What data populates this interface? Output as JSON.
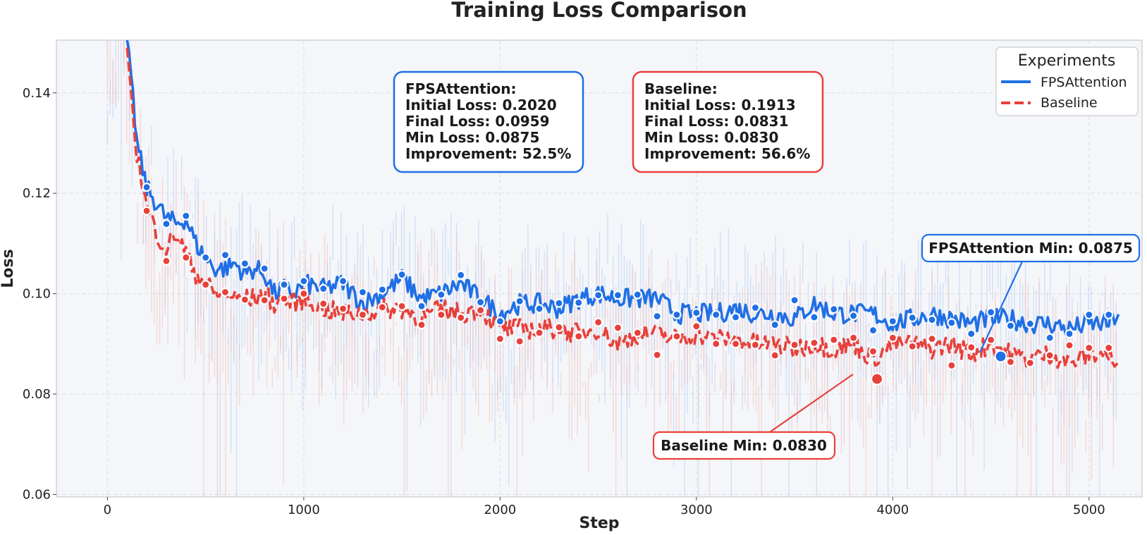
{
  "chart_data": {
    "type": "line",
    "title": "Training Loss Comparison",
    "xlabel": "Step",
    "ylabel": "Loss",
    "xlim": [
      -260,
      5270
    ],
    "ylim": [
      0.0595,
      0.1505
    ],
    "xticks": [
      0,
      1000,
      2000,
      3000,
      4000,
      5000
    ],
    "xtick_labels": [
      "0",
      "1000",
      "2000",
      "3000",
      "4000",
      "5000"
    ],
    "yticks": [
      0.06,
      0.08,
      0.1,
      0.12,
      0.14
    ],
    "ytick_labels": [
      "0.06",
      "0.08",
      "0.10",
      "0.12",
      "0.14"
    ],
    "grid": true,
    "legend": {
      "title": "Experiments",
      "location": "top-right",
      "entries": [
        "FPSAttention",
        "Baseline"
      ]
    },
    "series": [
      {
        "name": "FPSAttention",
        "color": "#1f6fe5",
        "style": "solid",
        "x": [
          100,
          150,
          200,
          250,
          300,
          350,
          400,
          450,
          500,
          550,
          600,
          650,
          700,
          750,
          800,
          850,
          900,
          950,
          1000,
          1100,
          1200,
          1300,
          1400,
          1500,
          1600,
          1700,
          1800,
          1900,
          2000,
          2100,
          2200,
          2300,
          2400,
          2500,
          2600,
          2700,
          2800,
          2900,
          3000,
          3100,
          3200,
          3300,
          3400,
          3500,
          3600,
          3700,
          3800,
          3900,
          4000,
          4100,
          4200,
          4300,
          4400,
          4500,
          4600,
          4700,
          4800,
          4900,
          5000,
          5100,
          5150
        ],
        "y": [
          0.153,
          0.13,
          0.121,
          0.118,
          0.115,
          0.114,
          0.115,
          0.11,
          0.107,
          0.105,
          0.105,
          0.106,
          0.104,
          0.105,
          0.104,
          0.1,
          0.101,
          0.1,
          0.102,
          0.101,
          0.102,
          0.098,
          0.1,
          0.103,
          0.099,
          0.1,
          0.102,
          0.099,
          0.096,
          0.098,
          0.098,
          0.097,
          0.099,
          0.1,
          0.099,
          0.099,
          0.099,
          0.096,
          0.096,
          0.096,
          0.097,
          0.096,
          0.096,
          0.095,
          0.098,
          0.096,
          0.096,
          0.096,
          0.094,
          0.095,
          0.096,
          0.095,
          0.094,
          0.095,
          0.095,
          0.094,
          0.094,
          0.093,
          0.094,
          0.094,
          0.096
        ],
        "markers_x": [
          200,
          300,
          400,
          500,
          600,
          700,
          800,
          900,
          1000,
          1100,
          1200,
          1300,
          1400,
          1500,
          1600,
          1700,
          1800,
          1900,
          2000,
          2100,
          2200,
          2300,
          2400,
          2500,
          2600,
          2700,
          2800,
          2900,
          3000,
          3100,
          3200,
          3300,
          3400,
          3500,
          3600,
          3700,
          3800,
          3900,
          4000,
          4100,
          4200,
          4300,
          4400,
          4500,
          4600,
          4700,
          4800,
          4900,
          5000,
          5100
        ],
        "markers_y": [
          0.1212,
          0.1139,
          0.1155,
          0.1072,
          0.1077,
          0.106,
          0.105,
          0.1018,
          0.1025,
          0.101,
          0.1025,
          0.1003,
          0.1008,
          0.1038,
          0.0975,
          0.0998,
          0.1037,
          0.0983,
          0.0945,
          0.0985,
          0.097,
          0.0981,
          0.0982,
          0.0997,
          0.0997,
          0.0998,
          0.0955,
          0.0958,
          0.0962,
          0.0958,
          0.0953,
          0.0972,
          0.0938,
          0.0987,
          0.0953,
          0.0969,
          0.0956,
          0.0927,
          0.0945,
          0.0952,
          0.0948,
          0.0942,
          0.092,
          0.0963,
          0.0936,
          0.094,
          0.0912,
          0.092,
          0.0958,
          0.0958
        ],
        "initial_loss": "0.2020",
        "final_loss": "0.0959",
        "min_loss": "0.0875",
        "improvement": "52.5%",
        "min_point": {
          "x": 4550,
          "y": 0.0875
        }
      },
      {
        "name": "Baseline",
        "color": "#e8403a",
        "style": "dashed",
        "x": [
          100,
          150,
          200,
          250,
          300,
          350,
          400,
          450,
          500,
          550,
          600,
          650,
          700,
          750,
          800,
          850,
          900,
          950,
          1000,
          1100,
          1200,
          1300,
          1400,
          1500,
          1600,
          1700,
          1800,
          1900,
          2000,
          2100,
          2200,
          2300,
          2400,
          2500,
          2600,
          2700,
          2800,
          2900,
          3000,
          3100,
          3200,
          3300,
          3400,
          3500,
          3600,
          3700,
          3800,
          3900,
          4000,
          4100,
          4200,
          4300,
          4400,
          4500,
          4600,
          4700,
          4800,
          4900,
          5000,
          5100,
          5150
        ],
        "y": [
          0.149,
          0.128,
          0.117,
          0.112,
          0.109,
          0.112,
          0.108,
          0.104,
          0.102,
          0.1,
          0.1,
          0.099,
          0.099,
          0.099,
          0.1,
          0.098,
          0.099,
          0.098,
          0.099,
          0.097,
          0.096,
          0.096,
          0.097,
          0.097,
          0.095,
          0.097,
          0.096,
          0.097,
          0.093,
          0.093,
          0.093,
          0.093,
          0.092,
          0.093,
          0.09,
          0.092,
          0.092,
          0.091,
          0.092,
          0.091,
          0.091,
          0.09,
          0.09,
          0.089,
          0.09,
          0.089,
          0.09,
          0.087,
          0.09,
          0.09,
          0.089,
          0.09,
          0.088,
          0.09,
          0.088,
          0.087,
          0.088,
          0.086,
          0.088,
          0.088,
          0.084
        ],
        "markers_x": [
          200,
          300,
          400,
          500,
          600,
          700,
          800,
          900,
          1000,
          1100,
          1200,
          1300,
          1400,
          1500,
          1600,
          1700,
          1800,
          1900,
          2000,
          2100,
          2200,
          2300,
          2400,
          2500,
          2600,
          2700,
          2800,
          2900,
          3000,
          3100,
          3200,
          3300,
          3400,
          3500,
          3600,
          3700,
          3800,
          3900,
          4000,
          4100,
          4200,
          4300,
          4400,
          4500,
          4600,
          4700,
          4800,
          4900,
          5000,
          5100
        ],
        "markers_y": [
          0.1165,
          0.1065,
          0.1072,
          0.1018,
          0.1003,
          0.0988,
          0.0987,
          0.099,
          0.1,
          0.098,
          0.097,
          0.0958,
          0.0973,
          0.0975,
          0.0938,
          0.0958,
          0.0952,
          0.0967,
          0.091,
          0.0905,
          0.0922,
          0.0933,
          0.0915,
          0.0943,
          0.0932,
          0.0922,
          0.0878,
          0.0915,
          0.0935,
          0.09,
          0.09,
          0.0898,
          0.0877,
          0.0898,
          0.0902,
          0.0908,
          0.0912,
          0.0885,
          0.0912,
          0.0895,
          0.091,
          0.0857,
          0.0893,
          0.0908,
          0.0864,
          0.0862,
          0.0877,
          0.0897,
          0.0892,
          0.0892
        ],
        "initial_loss": "0.1913",
        "final_loss": "0.0831",
        "min_loss": "0.0830",
        "improvement": "56.6%",
        "min_point": {
          "x": 3920,
          "y": 0.083
        }
      }
    ],
    "stat_boxes": [
      {
        "series": "FPSAttention",
        "lines": [
          "FPSAttention:",
          "Initial Loss: 0.2020",
          "Final Loss: 0.0959",
          "Min Loss: 0.0875",
          "Improvement: 52.5%"
        ]
      },
      {
        "series": "Baseline",
        "lines": [
          "Baseline:",
          "Initial Loss: 0.1913",
          "Final Loss: 0.0831",
          "Min Loss: 0.0830",
          "Improvement: 56.6%"
        ]
      }
    ],
    "annotations": [
      {
        "text": "FPSAttention Min: 0.0875",
        "series": "FPSAttention"
      },
      {
        "text": "Baseline Min: 0.0830",
        "series": "Baseline"
      }
    ]
  }
}
